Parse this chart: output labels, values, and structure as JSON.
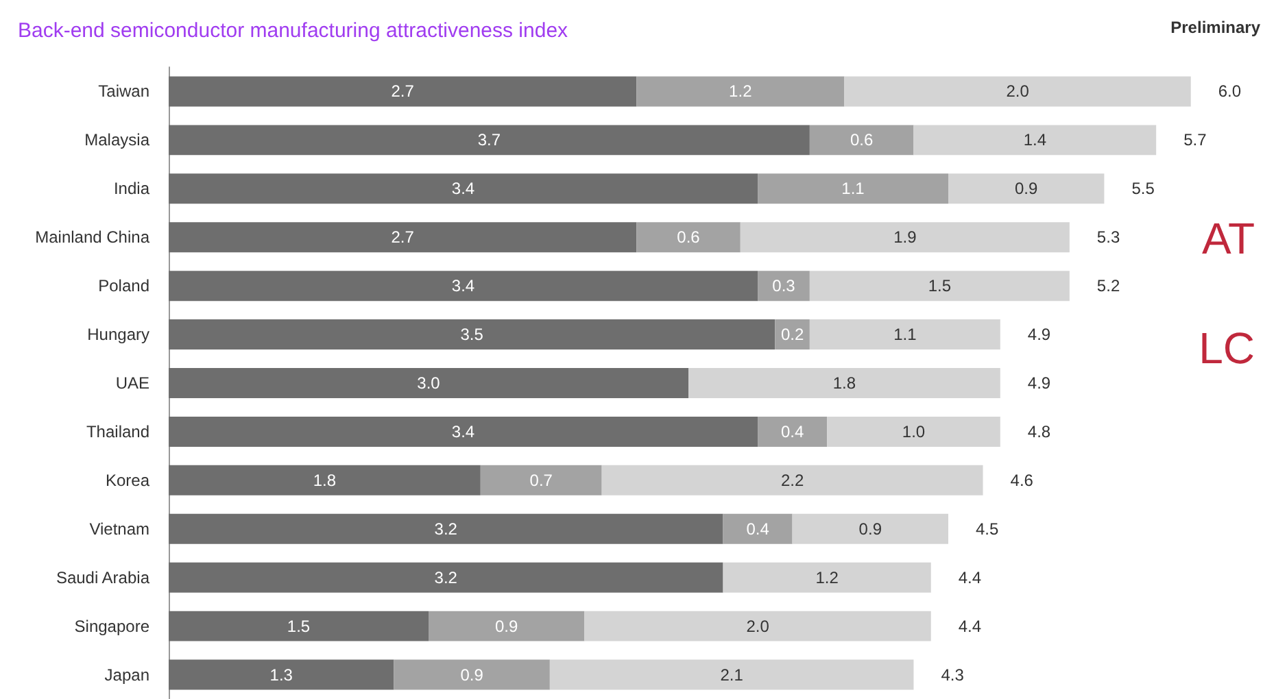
{
  "chart_data": {
    "type": "bar",
    "orientation": "horizontal",
    "stacked": true,
    "title": "Back-end semiconductor manufacturing attractiveness index",
    "categories": [
      "Taiwan",
      "Malaysia",
      "India",
      "Mainland China",
      "Poland",
      "Hungary",
      "UAE",
      "Thailand",
      "Korea",
      "Vietnam",
      "Saudi Arabia",
      "Singapore",
      "Japan"
    ],
    "series": [
      {
        "color": "#6e6e6e",
        "values": [
          2.7,
          3.7,
          3.4,
          2.7,
          3.4,
          3.5,
          3.0,
          3.4,
          1.8,
          3.2,
          3.2,
          1.5,
          1.3
        ],
        "value_labels": [
          "2.7",
          "3.7",
          "3.4",
          "2.7",
          "3.4",
          "3.5",
          "3.0",
          "3.4",
          "1.8",
          "3.2",
          "3.2",
          "1.5",
          "1.3"
        ]
      },
      {
        "color": "#a3a3a3",
        "values": [
          1.2,
          0.6,
          1.1,
          0.6,
          0.3,
          0.2,
          null,
          0.4,
          0.7,
          0.4,
          null,
          0.9,
          0.9
        ],
        "value_labels": [
          "1.2",
          "0.6",
          "1.1",
          "0.6",
          "0.3",
          "0.2",
          null,
          "0.4",
          "0.7",
          "0.4",
          null,
          "0.9",
          "0.9"
        ]
      },
      {
        "color": "#d4d4d4",
        "values": [
          2.0,
          1.4,
          0.9,
          1.9,
          1.5,
          1.1,
          1.8,
          1.0,
          2.2,
          0.9,
          1.2,
          2.0,
          2.1
        ],
        "value_labels": [
          "2.0",
          "1.4",
          "0.9",
          "1.9",
          "1.5",
          "1.1",
          "1.8",
          "1.0",
          "2.2",
          "0.9",
          "1.2",
          "2.0",
          "2.1"
        ]
      }
    ],
    "totals": [
      "6.0",
      "5.7",
      "5.5",
      "5.3",
      "5.2",
      "4.9",
      "4.9",
      "4.8",
      "4.6",
      "4.5",
      "4.4",
      "4.4",
      "4.3"
    ],
    "annotations": [
      "Preliminary",
      "AT",
      "LC"
    ]
  }
}
